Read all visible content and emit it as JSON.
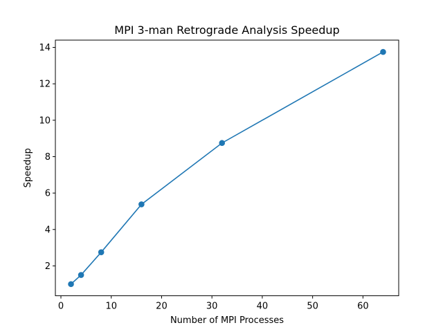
{
  "chart_data": {
    "type": "line",
    "title": "MPI 3-man Retrograde Analysis Speedup",
    "xlabel": "Number of MPI Processes",
    "ylabel": "Speedup",
    "x": [
      2,
      4,
      8,
      16,
      32,
      64
    ],
    "series": [
      {
        "values": [
          1.0,
          1.5,
          2.75,
          5.38,
          8.75,
          13.75
        ]
      }
    ],
    "xlim": [
      -1.1,
      67.1
    ],
    "ylim": [
      0.36,
      14.4
    ],
    "xticks": [
      0,
      10,
      20,
      30,
      40,
      50,
      60
    ],
    "yticks": [
      2,
      4,
      6,
      8,
      10,
      12,
      14
    ],
    "xtick_labels": [
      "0",
      "10",
      "20",
      "30",
      "40",
      "50",
      "60"
    ],
    "ytick_labels": [
      "2",
      "4",
      "6",
      "8",
      "10",
      "12",
      "14"
    ],
    "grid": false,
    "color": "#1f77b4",
    "marker": "circle"
  }
}
